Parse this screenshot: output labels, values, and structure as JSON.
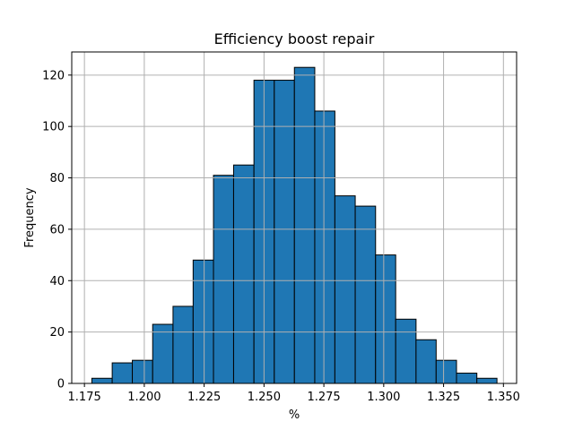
{
  "chart_data": {
    "type": "bar",
    "title": "Efficiency boost repair",
    "xlabel": "%",
    "ylabel": "Frequency",
    "grid": true,
    "bar_color": "#1f77b4",
    "edge_color": "#000000",
    "xlim": [
      1.1697,
      1.3555
    ],
    "ylim": [
      0,
      129
    ],
    "xticks": [
      {
        "value": 1.175,
        "label": "1.175"
      },
      {
        "value": 1.2,
        "label": "1.200"
      },
      {
        "value": 1.225,
        "label": "1.225"
      },
      {
        "value": 1.25,
        "label": "1.250"
      },
      {
        "value": 1.275,
        "label": "1.275"
      },
      {
        "value": 1.3,
        "label": "1.300"
      },
      {
        "value": 1.325,
        "label": "1.325"
      },
      {
        "value": 1.35,
        "label": "1.350"
      }
    ],
    "yticks": [
      {
        "value": 0,
        "label": "0"
      },
      {
        "value": 20,
        "label": "20"
      },
      {
        "value": 40,
        "label": "40"
      },
      {
        "value": 60,
        "label": "60"
      },
      {
        "value": 80,
        "label": "80"
      },
      {
        "value": 100,
        "label": "100"
      },
      {
        "value": 120,
        "label": "120"
      }
    ],
    "bins": [
      {
        "x0": 1.1781,
        "x1": 1.1866,
        "count": 2
      },
      {
        "x0": 1.1866,
        "x1": 1.195,
        "count": 8
      },
      {
        "x0": 1.195,
        "x1": 1.2035,
        "count": 9
      },
      {
        "x0": 1.2035,
        "x1": 1.212,
        "count": 23
      },
      {
        "x0": 1.212,
        "x1": 1.2204,
        "count": 30
      },
      {
        "x0": 1.2204,
        "x1": 1.2289,
        "count": 48
      },
      {
        "x0": 1.2289,
        "x1": 1.2373,
        "count": 81
      },
      {
        "x0": 1.2373,
        "x1": 1.2458,
        "count": 85
      },
      {
        "x0": 1.2458,
        "x1": 1.2543,
        "count": 118
      },
      {
        "x0": 1.2543,
        "x1": 1.2627,
        "count": 118
      },
      {
        "x0": 1.2627,
        "x1": 1.2712,
        "count": 123
      },
      {
        "x0": 1.2712,
        "x1": 1.2796,
        "count": 106
      },
      {
        "x0": 1.2796,
        "x1": 1.2881,
        "count": 73
      },
      {
        "x0": 1.2881,
        "x1": 1.2966,
        "count": 69
      },
      {
        "x0": 1.2966,
        "x1": 1.305,
        "count": 50
      },
      {
        "x0": 1.305,
        "x1": 1.3135,
        "count": 25
      },
      {
        "x0": 1.3135,
        "x1": 1.3219,
        "count": 17
      },
      {
        "x0": 1.3219,
        "x1": 1.3304,
        "count": 9
      },
      {
        "x0": 1.3304,
        "x1": 1.3389,
        "count": 4
      },
      {
        "x0": 1.3389,
        "x1": 1.3473,
        "count": 2
      }
    ]
  }
}
